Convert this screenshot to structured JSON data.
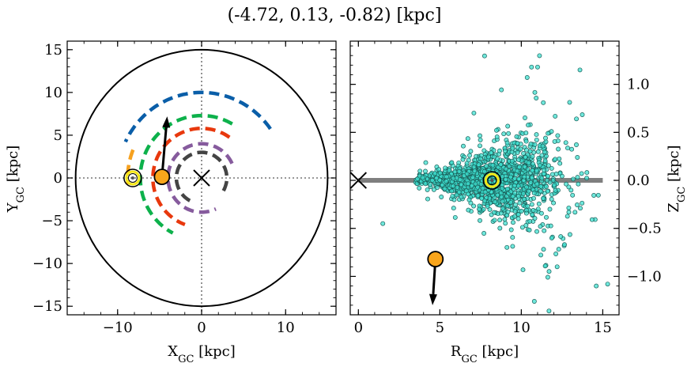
{
  "chart_data": [
    {
      "type": "scatter",
      "title": "(-4.72, 0.13, -0.82) [kpc]",
      "xlabel": "X",
      "xlabel_sub": "GC",
      "xlabel_unit": " [kpc]",
      "ylabel": "Y",
      "ylabel_sub": "GC",
      "ylabel_unit": " [kpc]",
      "xlim": [
        -16,
        16
      ],
      "ylim": [
        -16,
        16
      ],
      "xticks": [
        -10,
        0,
        10
      ],
      "xtick_labels": [
        "−10",
        "0",
        "10"
      ],
      "yticks": [
        -15,
        -10,
        -5,
        0,
        5,
        10,
        15
      ],
      "ytick_labels": [
        "−15",
        "−10",
        "−5",
        "0",
        "5",
        "10",
        "15"
      ],
      "galaxy_radius": 15,
      "galactic_center": [
        0,
        0
      ],
      "sun": [
        -8.2,
        0
      ],
      "object": [
        -4.72,
        0.13
      ],
      "velocity_arrow_tip": [
        -4.1,
        7.2
      ],
      "arms": [
        {
          "color": "#0a5ea8",
          "radius": 10.0,
          "start_deg": 35,
          "end_deg": 155
        },
        {
          "color": "#0db14b",
          "radius": 7.3,
          "start_deg": 60,
          "end_deg": 242
        },
        {
          "color": "#e8380d",
          "radius": 5.8,
          "start_deg": 55,
          "end_deg": 250
        },
        {
          "color": "#865b9d",
          "radius": 4.0,
          "start_deg": 25,
          "end_deg": 295
        },
        {
          "color": "#444444",
          "radius": 3.0,
          "start_deg": -30,
          "end_deg": 250
        },
        {
          "color": "#f6a11f",
          "radius": 8.8,
          "start_deg": 158,
          "end_deg": 185
        }
      ]
    },
    {
      "type": "scatter",
      "xlabel": "R",
      "xlabel_sub": "GC",
      "xlabel_unit": " [kpc]",
      "ylabel": "Z",
      "ylabel_sub": "GC",
      "ylabel_unit": " [kpc]",
      "xlim": [
        -0.5,
        16
      ],
      "ylim": [
        -1.4,
        1.45
      ],
      "xticks": [
        0,
        5,
        10,
        15
      ],
      "xtick_labels": [
        "0",
        "5",
        "10",
        "15"
      ],
      "yticks": [
        -1.0,
        -0.5,
        0.0,
        0.5,
        1.0
      ],
      "ytick_labels": [
        "−1.0",
        "−0.5",
        "0.0",
        "0.5",
        "1.0"
      ],
      "disk_extent": [
        0,
        15
      ],
      "galactic_center": [
        0,
        0
      ],
      "sun": [
        8.2,
        0
      ],
      "object": [
        4.73,
        -0.82
      ],
      "velocity_arrow_tip": [
        4.55,
        -1.3
      ],
      "star_color": "#3fe0d0",
      "star_count": 1500
    }
  ],
  "colors": {
    "sun_fill": "#f6e717",
    "object_fill": "#f9a51b",
    "disk_band": "#7f7f7f"
  }
}
